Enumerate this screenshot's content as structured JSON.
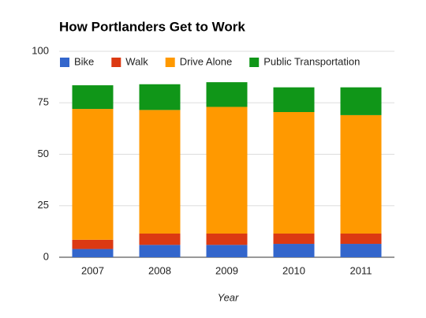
{
  "chart_data": {
    "type": "stacked_bar",
    "title": "How Portlanders Get to Work",
    "x_label": "Year",
    "categories": [
      "2007",
      "2008",
      "2009",
      "2010",
      "2011"
    ],
    "series": [
      {
        "name": "Bike",
        "color": "#3366cc",
        "values": [
          4,
          6,
          6,
          6.5,
          6.5
        ]
      },
      {
        "name": "Walk",
        "color": "#dc3912",
        "values": [
          4.5,
          5.5,
          5.5,
          5,
          5
        ]
      },
      {
        "name": "Drive Alone",
        "color": "#ff9900",
        "values": [
          63.5,
          60,
          61.5,
          59,
          57.5
        ]
      },
      {
        "name": "Public Transportation",
        "color": "#109618",
        "values": [
          11.5,
          12.5,
          12,
          12,
          13.5
        ]
      }
    ],
    "ylim": [
      0,
      100
    ],
    "yticks": [
      0,
      25,
      50,
      75,
      100
    ],
    "grid": true,
    "legend": "top"
  }
}
